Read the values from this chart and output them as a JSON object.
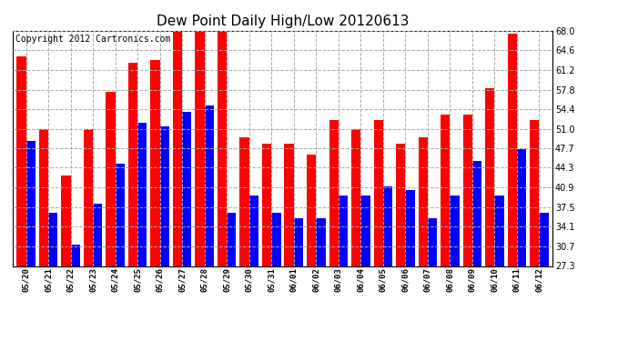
{
  "title": "Dew Point Daily High/Low 20120613",
  "copyright": "Copyright 2012 Cartronics.com",
  "categories": [
    "05/20",
    "05/21",
    "05/22",
    "05/23",
    "05/24",
    "05/25",
    "05/26",
    "05/27",
    "05/28",
    "05/29",
    "05/30",
    "05/31",
    "06/01",
    "06/02",
    "06/03",
    "06/04",
    "06/05",
    "06/06",
    "06/07",
    "06/08",
    "06/09",
    "06/10",
    "06/11",
    "06/12"
  ],
  "high_values": [
    63.5,
    51.0,
    43.0,
    51.0,
    57.5,
    62.5,
    63.0,
    68.0,
    68.0,
    68.0,
    49.5,
    48.5,
    48.5,
    46.5,
    52.5,
    51.0,
    52.5,
    48.5,
    49.5,
    53.5,
    53.5,
    58.0,
    67.5,
    52.5
  ],
  "low_values": [
    49.0,
    36.5,
    31.0,
    38.0,
    45.0,
    52.0,
    51.5,
    54.0,
    55.0,
    36.5,
    39.5,
    36.5,
    35.5,
    35.5,
    39.5,
    39.5,
    41.0,
    40.5,
    35.5,
    39.5,
    45.5,
    39.5,
    47.5,
    36.5
  ],
  "high_color": "#ff0000",
  "low_color": "#0000ff",
  "bg_color": "#ffffff",
  "plot_bg_color": "#ffffff",
  "grid_color": "#aaaaaa",
  "ylim_min": 27.3,
  "ylim_max": 68.0,
  "yticks": [
    27.3,
    30.7,
    34.1,
    37.5,
    40.9,
    44.3,
    47.7,
    51.0,
    54.4,
    57.8,
    61.2,
    64.6,
    68.0
  ],
  "title_fontsize": 11,
  "copyright_fontsize": 7,
  "bar_width": 0.42,
  "figwidth": 6.9,
  "figheight": 3.75,
  "dpi": 100
}
